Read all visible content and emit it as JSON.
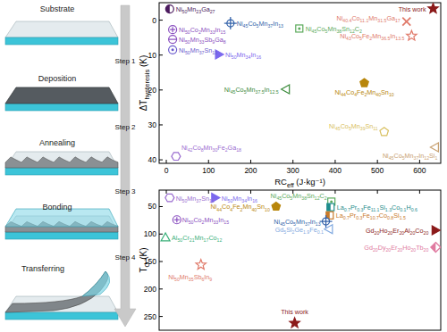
{
  "chart_data": [
    {
      "type": "scatter",
      "ylabel": "ΔThysteresis (K)",
      "xlabel": "RCeff (J·kg⁻¹)",
      "xlim": [
        -17,
        650
      ],
      "ylim": [
        41,
        -5
      ],
      "xticks": [
        0,
        100,
        200,
        300,
        400,
        500,
        600
      ],
      "yticks": [
        0,
        10,
        20,
        30,
        40
      ],
      "grid": false,
      "series": [
        {
          "name": "This work",
          "color": "#8b1a1a",
          "marker": "star",
          "x": [
            632
          ],
          "values": [
            -3.3
          ]
        },
        {
          "name": "Ni50Mn23Ga27",
          "color": "#4b1a5e",
          "marker": "half-circle",
          "x": [
            8
          ],
          "values": [
            -3.2
          ]
        },
        {
          "name": "Ni45Co5Mn37In13",
          "color": "#2f5fa8",
          "marker": "circle-cross",
          "x": [
            152
          ],
          "values": [
            0.9
          ]
        },
        {
          "name": "Ni50Co2Mn33In15",
          "color": "#8a4fc0",
          "marker": "circle-plus",
          "x": [
            15
          ],
          "values": [
            2.7
          ]
        },
        {
          "name": "Ni50Mn33Sb9Ga8",
          "color": "#8a4fc0",
          "marker": "circle-line",
          "x": [
            15
          ],
          "values": [
            5.5
          ]
        },
        {
          "name": "Ni50Mn37Sn13",
          "color": "#6a5acd",
          "marker": "circle-dot",
          "x": [
            15
          ],
          "values": [
            8.5
          ]
        },
        {
          "name": "Ni50Mn34In16",
          "color": "#7b68ee",
          "marker": "triangle-right",
          "x": [
            125
          ],
          "values": [
            9.8
          ]
        },
        {
          "name": "Ni45Co5Mn38Sn12C2",
          "color": "#5aaa5a",
          "marker": "square-dot",
          "x": [
            315
          ],
          "values": [
            2.4
          ]
        },
        {
          "name": "Ni40.4Co11.1Mn31.5Ga17",
          "color": "#e07a6a",
          "marker": "x",
          "x": [
            569
          ],
          "values": [
            0.4
          ]
        },
        {
          "name": "Ni43Co5Fe2Mn36.5In13.5",
          "color": "#e07a6a",
          "marker": "star-open",
          "x": [
            581
          ],
          "values": [
            4.5
          ]
        },
        {
          "name": "Ni44Co4Fe2Mn40Sn10",
          "color": "#b8860b",
          "marker": "pentagon",
          "x": [
            469
          ],
          "values": [
            18
          ]
        },
        {
          "name": "Ni45Co5Mn37.5In12.5",
          "color": "#3a8a3a",
          "marker": "triangle-left-open",
          "x": [
            283
          ],
          "values": [
            19.8
          ]
        },
        {
          "name": "Ni45Co5Mn39Sn11",
          "color": "#d8c060",
          "marker": "pentagon-open",
          "x": [
            516
          ],
          "values": [
            32
          ]
        },
        {
          "name": "Ni45Co5Mn37In12Si1",
          "color": "#c8a070",
          "marker": "triangle-left-open",
          "x": [
            636
          ],
          "values": [
            36.4
          ]
        },
        {
          "name": "Ni42Co8Mn30Fe2Ga18",
          "color": "#9a6cd0",
          "marker": "hexagon-open",
          "x": [
            23
          ],
          "values": [
            39
          ]
        }
      ]
    },
    {
      "type": "scatter",
      "ylabel": "TO (K)",
      "xlim": [
        -17,
        650
      ],
      "ylim": [
        275,
        20
      ],
      "xticks": [
        0,
        100,
        200,
        300,
        400,
        500,
        600
      ],
      "yticks": [
        50,
        100,
        150,
        200,
        250
      ],
      "grid": false,
      "tick_labels": "y",
      "series": [
        {
          "name": "Ni50Mn37Sn13",
          "color": "#9a6cd0",
          "marker": "hexagon-open",
          "x": [
            8
          ],
          "values": [
            34
          ]
        },
        {
          "name": "Ni50Mn34In16",
          "color": "#7b68ee",
          "marker": "triangle-right",
          "x": [
            116
          ],
          "values": [
            34
          ]
        },
        {
          "name": "Ni45Co5Mn38Sn12C2",
          "color": "#5aaa5a",
          "marker": "square-dot",
          "x": [
            391
          ],
          "values": [
            41
          ]
        },
        {
          "name": "Ni44Co4Fe2Mn40Sn10",
          "color": "#b8860b",
          "marker": "pentagon",
          "x": [
            260
          ],
          "values": [
            50
          ]
        },
        {
          "name": "La0.7Pr0.3Fe11.1Si1.3Co0.1H0.6",
          "color": "#1e8c8c",
          "marker": "half-square",
          "x": [
            389
          ],
          "values": [
            51
          ]
        },
        {
          "name": "La0.7Pr0.3Fe10.7Co0.8Si1.5",
          "color": "#c87a2a",
          "marker": "half-square",
          "x": [
            387
          ],
          "values": [
            66
          ]
        },
        {
          "name": "Ni50Co2Mn33In15",
          "color": "#8a4fc0",
          "marker": "circle-plus",
          "x": [
            25
          ],
          "values": [
            74
          ]
        },
        {
          "name": "Ni45Co5Mn37In13",
          "color": "#2f5fa8",
          "marker": "circle-cross",
          "x": [
            378
          ],
          "values": [
            77
          ]
        },
        {
          "name": "Gd5Si2Ge1.9Fe0.1",
          "color": "#7fa8e0",
          "marker": "triangle-left-open",
          "x": [
            385
          ],
          "values": [
            91
          ]
        },
        {
          "name": "Al50Cr21Mn17Co12",
          "color": "#3ab07a",
          "marker": "triangle-up-open",
          "x": [
            -2
          ],
          "values": [
            106
          ]
        },
        {
          "name": "Ni50Mn35Sb6In9",
          "color": "#e07a6a",
          "marker": "star-open",
          "x": [
            82
          ],
          "values": [
            156
          ]
        },
        {
          "name": "Gd20Ho20Er20Al20Co20",
          "color": "#8b1a1a",
          "marker": "triangle-right",
          "x": [
            638
          ],
          "values": [
            93
          ]
        },
        {
          "name": "Gd20Dy20Er20Ho20Tb20",
          "color": "#e07aa0",
          "marker": "half-diamond",
          "x": [
            638
          ],
          "values": [
            124
          ]
        },
        {
          "name": "This work",
          "color": "#8b1a1a",
          "marker": "star",
          "x": [
            304
          ],
          "values": [
            262
          ]
        }
      ]
    }
  ],
  "diagram": {
    "stages": [
      "Substrate",
      "Deposition",
      "Annealing",
      "Bonding",
      "Transferring"
    ],
    "steps": [
      "Step 1",
      "Step 2",
      "Step 3",
      "Step 4"
    ]
  }
}
